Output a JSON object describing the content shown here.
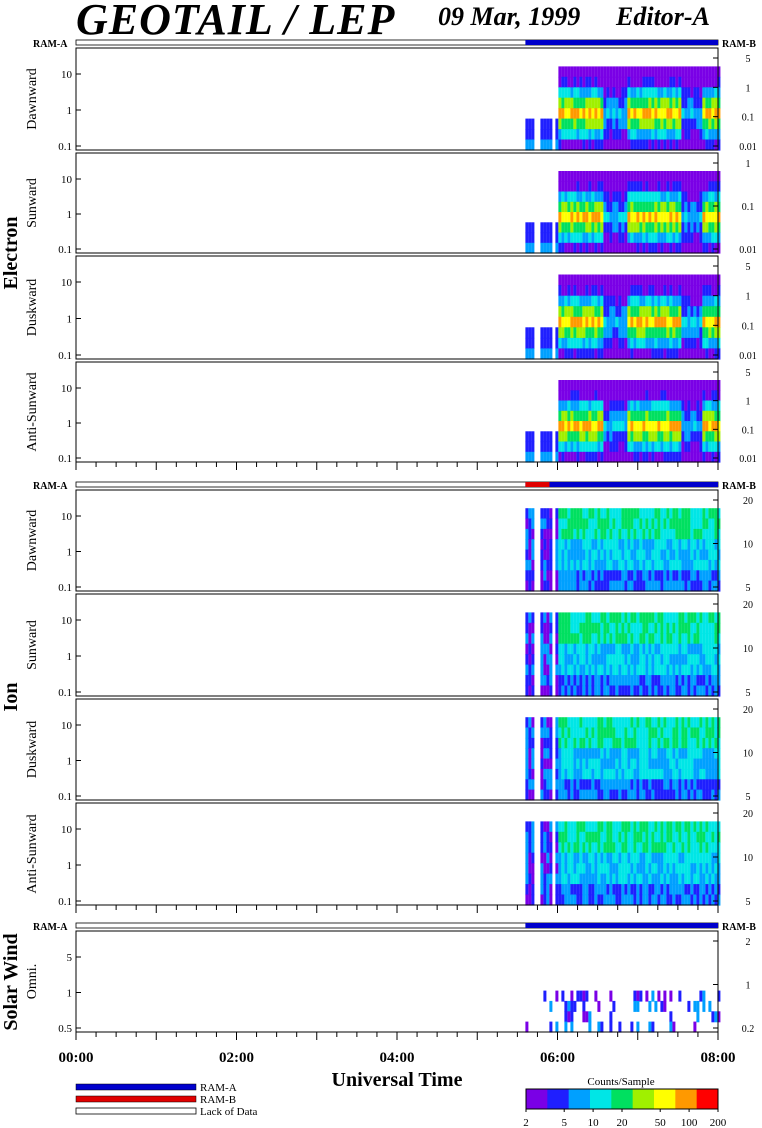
{
  "header": {
    "title": "GEOTAIL / LEP",
    "date": "09 Mar, 1999",
    "editor": "Editor-A"
  },
  "chart_data": {
    "type": "heatmap",
    "xlabel": "Universal Time",
    "x_ticks": [
      "00:00",
      "02:00",
      "04:00",
      "06:00",
      "08:00"
    ],
    "xlim": [
      "00:00",
      "08:00"
    ],
    "ram_labels": {
      "left": "RAM-A",
      "right": "RAM-B"
    },
    "groups": [
      {
        "name": "Electron",
        "panels": [
          {
            "label": "Dawnward",
            "left_ticks": [
              "10",
              "1",
              "0.1"
            ],
            "right_ticks": [
              "5",
              "1",
              "0.1",
              "0.01"
            ]
          },
          {
            "label": "Sunward",
            "left_ticks": [
              "10",
              "1",
              "0.1"
            ],
            "right_ticks": [
              "1",
              "0.1",
              "0.01"
            ]
          },
          {
            "label": "Duskward",
            "left_ticks": [
              "10",
              "1",
              "0.1"
            ],
            "right_ticks": [
              "5",
              "1",
              "0.1",
              "0.01"
            ]
          },
          {
            "label": "Anti-Sunward",
            "left_ticks": [
              "10",
              "1",
              "0.1"
            ],
            "right_ticks": [
              "5",
              "1",
              "0.1",
              "0.01"
            ]
          }
        ]
      },
      {
        "name": "Ion",
        "panels": [
          {
            "label": "Dawnward",
            "left_ticks": [
              "10",
              "1",
              "0.1"
            ],
            "right_ticks": [
              "20",
              "10",
              "5"
            ]
          },
          {
            "label": "Sunward",
            "left_ticks": [
              "10",
              "1",
              "0.1"
            ],
            "right_ticks": [
              "20",
              "10",
              "5"
            ]
          },
          {
            "label": "Duskward",
            "left_ticks": [
              "10",
              "1",
              "0.1"
            ],
            "right_ticks": [
              "20",
              "10",
              "5"
            ]
          },
          {
            "label": "Anti-Sunward",
            "left_ticks": [
              "10",
              "1",
              "0.1"
            ],
            "right_ticks": [
              "20",
              "10",
              "5"
            ]
          }
        ]
      },
      {
        "name": "Solar Wind",
        "panels": [
          {
            "label": "Omni.",
            "left_ticks": [
              "5",
              "1",
              "0.5"
            ],
            "right_ticks": [
              "2",
              "1",
              "0.2"
            ]
          }
        ]
      }
    ],
    "data_start": "05:36",
    "data_end": "08:00",
    "legend": {
      "ram_a": "RAM-A",
      "ram_b": "RAM-B",
      "lack": "Lack of Data",
      "ram_a_color": "#0000cc",
      "ram_b_color": "#e00000"
    },
    "colorbar": {
      "label": "Counts/Sample",
      "ticks": [
        "2",
        "5",
        "10",
        "20",
        "50",
        "100",
        "200"
      ],
      "colors": [
        "#7a00e6",
        "#1f1fff",
        "#00a0ff",
        "#00e6e6",
        "#00e060",
        "#a0f000",
        "#ffff00",
        "#ff9900",
        "#ff0000"
      ]
    }
  }
}
